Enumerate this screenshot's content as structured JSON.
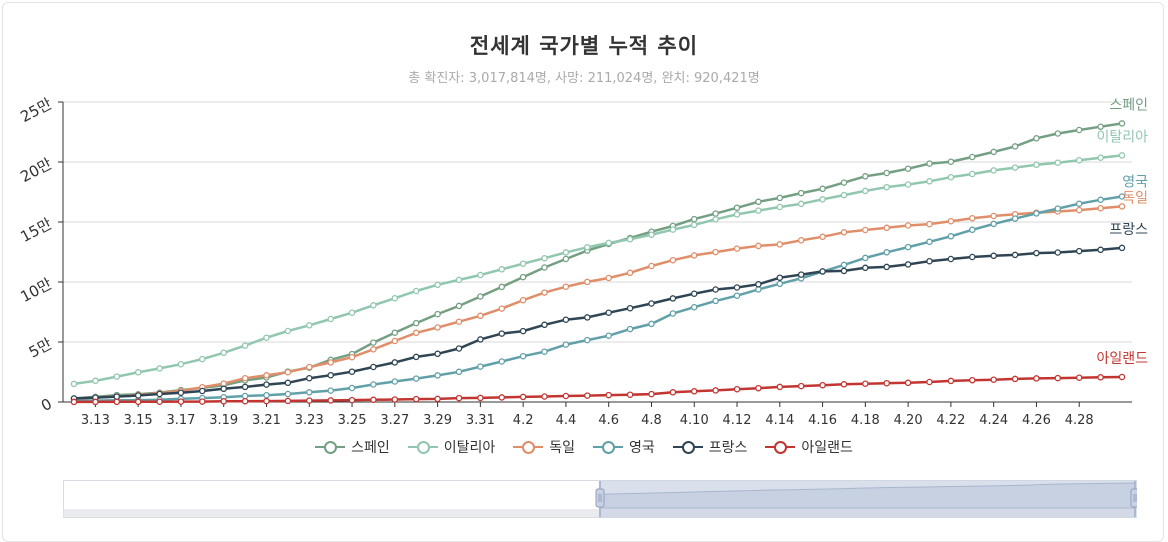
{
  "title": "전세계 국가별 누적 추이",
  "subtitle": "총 확진자: 3,017,814명, 사망: 211,024명, 완치: 920,421명",
  "chart_data": {
    "type": "line",
    "x_ticks": [
      "3.13",
      "3.15",
      "3.17",
      "3.19",
      "3.21",
      "3.23",
      "3.25",
      "3.27",
      "3.29",
      "3.31",
      "4.2",
      "4.4",
      "4.6",
      "4.8",
      "4.10",
      "4.12",
      "4.14",
      "4.16",
      "4.18",
      "4.20",
      "4.22",
      "4.24",
      "4.26",
      "4.28"
    ],
    "y_ticks": [
      "0",
      "5만",
      "10만",
      "15만",
      "20만",
      "25만"
    ],
    "ylim": [
      0,
      250000
    ],
    "x_start": "3.12",
    "x_end": "4.28",
    "series": [
      {
        "name": "스페인",
        "color": "#749f83",
        "values": [
          2965,
          4231,
          5753,
          6391,
          7798,
          9942,
          11748,
          13910,
          17963,
          20410,
          25374,
          28603,
          35136,
          39885,
          49515,
          57786,
          65719,
          73235,
          80110,
          87956,
          95923,
          104118,
          112065,
          119199,
          126168,
          131646,
          136675,
          141942,
          146690,
          152446,
          157022,
          161852,
          166831,
          170099,
          174060,
          177633,
          182816,
          188068,
          190839,
          194416,
          198674,
          200210,
          204178,
          208389,
          213024,
          219764,
          223759,
          226629,
          229422,
          232128
        ]
      },
      {
        "name": "이탈리아",
        "color": "#91c7ae",
        "values": [
          15113,
          17660,
          21157,
          24747,
          27980,
          31506,
          35713,
          41035,
          47021,
          53578,
          59138,
          63927,
          69176,
          74386,
          80589,
          86498,
          92472,
          97689,
          101739,
          105792,
          110574,
          115242,
          119827,
          124632,
          128948,
          132547,
          135586,
          139422,
          143626,
          147577,
          152271,
          156363,
          159516,
          162488,
          165155,
          168941,
          172434,
          175925,
          178972,
          181228,
          183957,
          187327,
          189973,
          192994,
          195351,
          197675,
          199414,
          201505,
          203591,
          205463
        ]
      },
      {
        "name": "독일",
        "color": "#e08e6a",
        "values": [
          2745,
          3675,
          4599,
          5813,
          7272,
          9257,
          12327,
          15320,
          19848,
          22213,
          24873,
          29056,
          32986,
          37323,
          43938,
          50871,
          57695,
          62095,
          66885,
          71808,
          77872,
          84794,
          91159,
          96092,
          100123,
          103374,
          107663,
          113296,
          118181,
          122171,
          124908,
          127854,
          130072,
          131359,
          134753,
          137698,
          141397,
          143342,
          145184,
          147065,
          148291,
          150648,
          153129,
          154999,
          156513,
          157770,
          158758,
          159912,
          161539,
          163009
        ]
      },
      {
        "name": "영국",
        "color": "#61a0a8",
        "values": [
          798,
          1140,
          1391,
          1543,
          1950,
          2626,
          3269,
          3983,
          5018,
          5683,
          6650,
          8077,
          9529,
          11658,
          14543,
          17089,
          19522,
          22141,
          25150,
          29474,
          33718,
          38168,
          41903,
          47806,
          51608,
          55242,
          60733,
          65077,
          73758,
          78991,
          84279,
          88621,
          93873,
          98476,
          103093,
          108692,
          114217,
          120067,
          124743,
          129044,
          133495,
          138078,
          143464,
          148377,
          152840,
          157149,
          161145,
          165221,
          168480,
          171253
        ]
      },
      {
        "name": "프랑스",
        "color": "#2f4554",
        "values": [
          2876,
          3661,
          4499,
          5423,
          6633,
          7730,
          9134,
          10995,
          12612,
          14459,
          16018,
          19856,
          22304,
          25233,
          29155,
          32964,
          37575,
          40174,
          44550,
          52128,
          56989,
          59105,
          64338,
          68605,
          70478,
          74390,
          78167,
          82048,
          86334,
          90276,
          93790,
          95403,
          98076,
          103573,
          106206,
          108847,
          109252,
          111821,
          112606,
          114657,
          117324,
          119151,
          120804,
          121856,
          122577,
          124114,
          124575,
          125770,
          126835,
          128442
        ]
      },
      {
        "name": "아일랜드",
        "color": "#c23531",
        "values": [
          70,
          90,
          129,
          169,
          223,
          292,
          366,
          557,
          683,
          785,
          906,
          1125,
          1329,
          1564,
          1819,
          2121,
          2415,
          2615,
          3235,
          3447,
          3849,
          4273,
          4604,
          4994,
          5364,
          5709,
          6074,
          6574,
          8089,
          8928,
          9655,
          10647,
          11479,
          12547,
          13271,
          13980,
          14758,
          15251,
          15652,
          16040,
          16671,
          17607,
          18184,
          18561,
          19262,
          19648,
          19877,
          20253,
          20612,
          20833
        ]
      }
    ]
  },
  "slider": {
    "start_pct": 50,
    "end_pct": 100
  }
}
